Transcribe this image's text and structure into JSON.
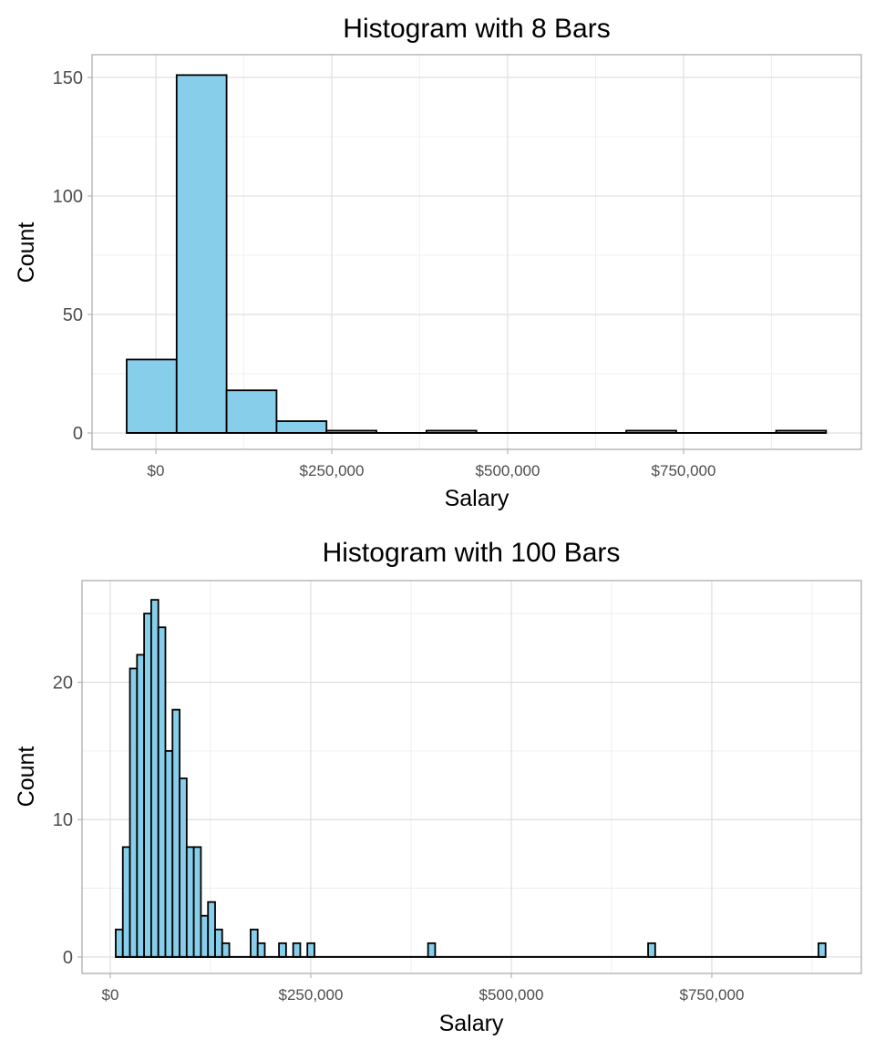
{
  "chart_data": [
    {
      "type": "bar",
      "subtype": "histogram",
      "title": "Histogram with 8 Bars",
      "xlabel": "Salary",
      "ylabel": "Count",
      "bin_start": -41500,
      "bin_width": 71000,
      "values": [
        31,
        151,
        18,
        5,
        1,
        0,
        1,
        0,
        0,
        0,
        1,
        0,
        0,
        1
      ],
      "xlim": [
        -90700,
        1002600
      ],
      "ylim": [
        -6.9,
        159.6
      ],
      "xticks": [
        0,
        250000,
        500000,
        750000
      ],
      "xtick_labels": [
        "$0",
        "$250,000",
        "$500,000",
        "$750,000"
      ],
      "xminor": [
        125000,
        375000,
        625000,
        875000
      ],
      "yticks": [
        0,
        50,
        100,
        150
      ],
      "ytick_labels": [
        "0",
        "50",
        "100",
        "150"
      ],
      "yminor": [
        25,
        75,
        125
      ],
      "grid": true,
      "fill_color": "#87ceeb",
      "edge_color": "#000000"
    },
    {
      "type": "bar",
      "subtype": "histogram",
      "title": "Histogram with 100 Bars",
      "xlabel": "Salary",
      "ylabel": "Count",
      "bin_start": 6800,
      "bin_width": 8850,
      "values": [
        2,
        8,
        21,
        22,
        25,
        26,
        24,
        15,
        18,
        13,
        8,
        8,
        3,
        4,
        2,
        1,
        0,
        0,
        0,
        2,
        1,
        0,
        0,
        1,
        0,
        1,
        0,
        1,
        0,
        0,
        0,
        0,
        0,
        0,
        0,
        0,
        0,
        0,
        0,
        0,
        0,
        0,
        0,
        0,
        1,
        0,
        0,
        0,
        0,
        0,
        0,
        0,
        0,
        0,
        0,
        0,
        0,
        0,
        0,
        0,
        0,
        0,
        0,
        0,
        0,
        0,
        0,
        0,
        0,
        0,
        0,
        0,
        0,
        0,
        0,
        1,
        0,
        0,
        0,
        0,
        0,
        0,
        0,
        0,
        0,
        0,
        0,
        0,
        0,
        0,
        0,
        0,
        0,
        0,
        0,
        0,
        0,
        0,
        0,
        1
      ],
      "xlim": [
        -35200,
        936400
      ],
      "ylim": [
        -1.2,
        27.4
      ],
      "xticks": [
        0,
        250000,
        500000,
        750000
      ],
      "xtick_labels": [
        "$0",
        "$250,000",
        "$500,000",
        "$750,000"
      ],
      "xminor": [
        125000,
        375000,
        625000,
        875000
      ],
      "yticks": [
        0,
        10,
        20
      ],
      "ytick_labels": [
        "0",
        "10",
        "20"
      ],
      "yminor": [
        5,
        15,
        25
      ],
      "grid": true,
      "fill_color": "#87ceeb",
      "edge_color": "#000000"
    }
  ]
}
